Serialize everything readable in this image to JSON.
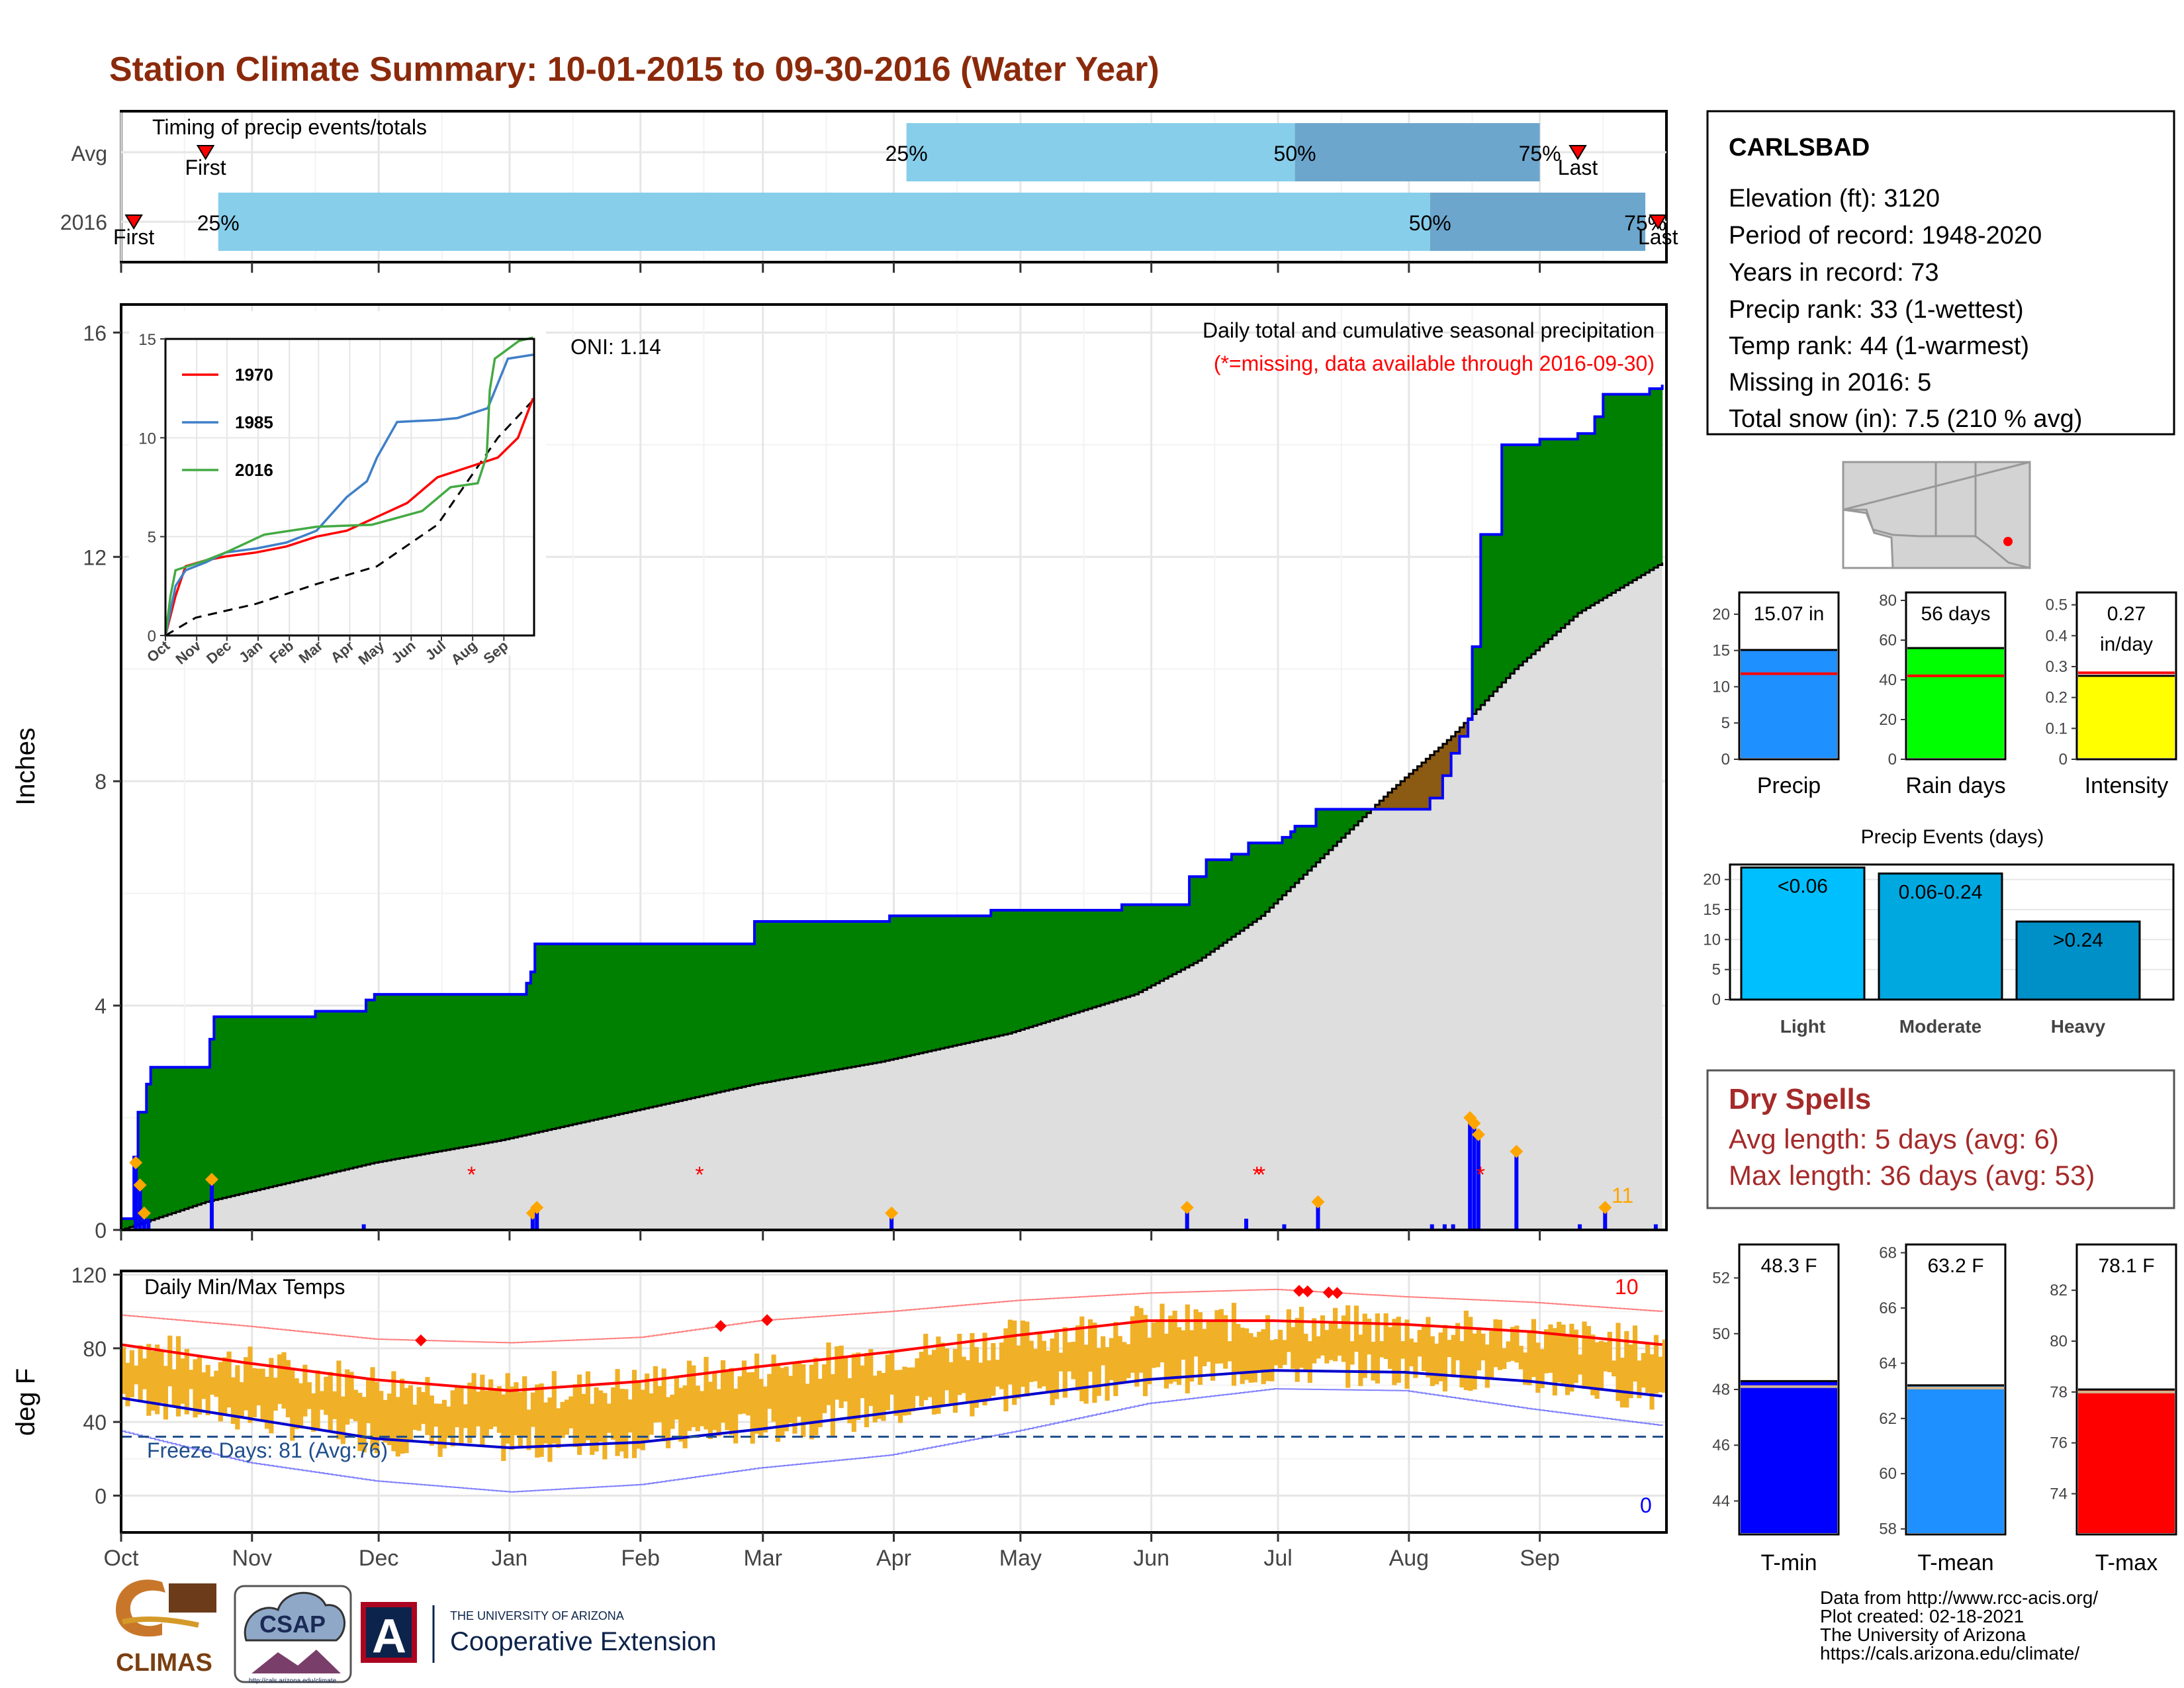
{
  "title": "Station Climate Summary: 10-01-2015 to 09-30-2016 (Water Year)",
  "colors": {
    "title": "#8b2a0b",
    "green": "#008000",
    "brown": "#8b5a13",
    "avg_fill": "#dedede",
    "blue": "#0000ff",
    "orange": "#f0b027",
    "red": "#ff0000",
    "light_blue_bar": "#87ceeb",
    "dark_blue_bar": "#6ca6cd",
    "dry_red": "#a52a2a"
  },
  "timing": {
    "title": "Timing of precip events/totals",
    "rows": [
      {
        "label": "Avg",
        "first_label": "First",
        "last_label": "Last",
        "q25": "25%",
        "q50": "50%",
        "q75": "75%",
        "first_day": 20,
        "last_day": 345,
        "p25_day": 186,
        "p50_day": 278,
        "p75_day": 336
      },
      {
        "label": "2016",
        "first_label": "First",
        "last_label": "Last",
        "q25": "25%",
        "q50": "50%",
        "q75": "75%",
        "first_day": 3,
        "last_day": 364,
        "p25_day": 23,
        "p50_day": 310,
        "p75_day": 361
      }
    ]
  },
  "chart_data": [
    {
      "type": "area",
      "name": "precip",
      "title": "Daily total and cumulative seasonal precipitation",
      "subtitle": "(*=missing, data available through 2016-09-30)",
      "ylabel": "Inches",
      "ylim": [
        0,
        16.5
      ],
      "yticks": [
        0,
        4,
        8,
        12,
        16
      ],
      "oni_label": "ONI: 1.14",
      "count_label": "11",
      "x_ticks": [
        "Oct",
        "Nov",
        "Dec",
        "Jan",
        "Feb",
        "Mar",
        "Apr",
        "May",
        "Jun",
        "Jul",
        "Aug",
        "Sep"
      ],
      "cumulative_2016_steps": [
        [
          0,
          0.2
        ],
        [
          3,
          1.3
        ],
        [
          4,
          2.1
        ],
        [
          6,
          2.6
        ],
        [
          7,
          2.9
        ],
        [
          21,
          3.4
        ],
        [
          22,
          3.8
        ],
        [
          45,
          3.8
        ],
        [
          46,
          3.9
        ],
        [
          57,
          3.9
        ],
        [
          58,
          4.1
        ],
        [
          60,
          4.2
        ],
        [
          95,
          4.2
        ],
        [
          96,
          4.4
        ],
        [
          97,
          4.6
        ],
        [
          98,
          5.1
        ],
        [
          149,
          5.1
        ],
        [
          150,
          5.5
        ],
        [
          172,
          5.5
        ],
        [
          182,
          5.6
        ],
        [
          205,
          5.6
        ],
        [
          206,
          5.7
        ],
        [
          236,
          5.7
        ],
        [
          237,
          5.8
        ],
        [
          252,
          5.8
        ],
        [
          253,
          6.3
        ],
        [
          256,
          6.3
        ],
        [
          257,
          6.6
        ],
        [
          262,
          6.6
        ],
        [
          263,
          6.7
        ],
        [
          266,
          6.7
        ],
        [
          267,
          6.9
        ],
        [
          275,
          7.0
        ],
        [
          277,
          7.1
        ],
        [
          278,
          7.2
        ],
        [
          283,
          7.5
        ],
        [
          306,
          7.5
        ],
        [
          310,
          7.7
        ],
        [
          313,
          8.1
        ],
        [
          315,
          8.5
        ],
        [
          317,
          8.8
        ],
        [
          319,
          9.1
        ],
        [
          320,
          10.4
        ],
        [
          322,
          12.4
        ],
        [
          327,
          14.0
        ],
        [
          336,
          14.1
        ],
        [
          345,
          14.2
        ],
        [
          349,
          14.5
        ],
        [
          351,
          14.9
        ],
        [
          362,
          15.0
        ],
        [
          365,
          15.07
        ]
      ],
      "cumulative_avg": [
        [
          0,
          0
        ],
        [
          20,
          0.5
        ],
        [
          60,
          1.2
        ],
        [
          90,
          1.6
        ],
        [
          120,
          2.1
        ],
        [
          150,
          2.6
        ],
        [
          180,
          3.0
        ],
        [
          210,
          3.5
        ],
        [
          240,
          4.2
        ],
        [
          255,
          4.8
        ],
        [
          270,
          5.6
        ],
        [
          285,
          6.7
        ],
        [
          300,
          7.8
        ],
        [
          315,
          8.8
        ],
        [
          330,
          10.0
        ],
        [
          345,
          11.0
        ],
        [
          365,
          11.9
        ]
      ],
      "daily_precip": [
        [
          3,
          1.2
        ],
        [
          4,
          0.8
        ],
        [
          5,
          0.3
        ],
        [
          6,
          0.2
        ],
        [
          21,
          0.9
        ],
        [
          57,
          0.1
        ],
        [
          97,
          0.3
        ],
        [
          98,
          0.4
        ],
        [
          182,
          0.3
        ],
        [
          252,
          0.4
        ],
        [
          266,
          0.2
        ],
        [
          275,
          0.1
        ],
        [
          283,
          0.5
        ],
        [
          310,
          0.1
        ],
        [
          313,
          0.1
        ],
        [
          315,
          0.1
        ],
        [
          319,
          2.0
        ],
        [
          320,
          1.9
        ],
        [
          321,
          1.7
        ],
        [
          330,
          1.4
        ],
        [
          345,
          0.1
        ],
        [
          351,
          0.4
        ],
        [
          363,
          0.1
        ]
      ],
      "missing_days": [
        83,
        137,
        269,
        270,
        322
      ],
      "inset": {
        "type": "line",
        "yticks": [
          0,
          5,
          10,
          15
        ],
        "ylim": [
          0,
          15
        ],
        "x_ticks": [
          "Oct",
          "Nov",
          "Dec",
          "Jan",
          "Feb",
          "Mar",
          "Apr",
          "May",
          "Jun",
          "Jul",
          "Aug",
          "Sep"
        ],
        "series": [
          {
            "name": "1970",
            "color": "#ff0000",
            "values": [
              [
                0,
                0
              ],
              [
                10,
                2
              ],
              [
                20,
                3.5
              ],
              [
                40,
                3.8
              ],
              [
                60,
                4.0
              ],
              [
                90,
                4.2
              ],
              [
                120,
                4.5
              ],
              [
                150,
                5.0
              ],
              [
                180,
                5.3
              ],
              [
                210,
                6.0
              ],
              [
                240,
                6.7
              ],
              [
                270,
                8.0
              ],
              [
                300,
                8.5
              ],
              [
                330,
                9.0
              ],
              [
                350,
                10.0
              ],
              [
                365,
                12.0
              ]
            ]
          },
          {
            "name": "1985",
            "color": "#3f7fc8",
            "values": [
              [
                0,
                0
              ],
              [
                10,
                2.5
              ],
              [
                20,
                3.3
              ],
              [
                40,
                3.7
              ],
              [
                60,
                4.2
              ],
              [
                90,
                4.4
              ],
              [
                120,
                4.7
              ],
              [
                150,
                5.3
              ],
              [
                180,
                7.0
              ],
              [
                200,
                7.8
              ],
              [
                210,
                9.0
              ],
              [
                230,
                10.8
              ],
              [
                270,
                10.9
              ],
              [
                290,
                11.0
              ],
              [
                320,
                11.5
              ],
              [
                340,
                14.0
              ],
              [
                365,
                14.2
              ]
            ]
          },
          {
            "name": "2016",
            "color": "#44aa44",
            "values": [
              [
                0,
                0
              ],
              [
                5,
                2.0
              ],
              [
                10,
                3.3
              ],
              [
                40,
                3.8
              ],
              [
                60,
                4.2
              ],
              [
                98,
                5.1
              ],
              [
                150,
                5.5
              ],
              [
                205,
                5.6
              ],
              [
                255,
                6.3
              ],
              [
                283,
                7.5
              ],
              [
                310,
                7.7
              ],
              [
                319,
                9.1
              ],
              [
                322,
                12.4
              ],
              [
                327,
                14.0
              ],
              [
                351,
                14.9
              ],
              [
                365,
                15.07
              ]
            ]
          }
        ],
        "avg_values": [
          [
            0,
            0
          ],
          [
            30,
            0.9
          ],
          [
            90,
            1.6
          ],
          [
            150,
            2.6
          ],
          [
            210,
            3.5
          ],
          [
            270,
            5.6
          ],
          [
            300,
            7.8
          ],
          [
            330,
            10.0
          ],
          [
            365,
            11.9
          ]
        ]
      }
    },
    {
      "type": "line",
      "name": "temps",
      "title": "Daily Min/Max Temps",
      "ylabel": "deg F",
      "ylim": [
        -20,
        122
      ],
      "yticks": [
        0,
        40,
        80,
        120
      ],
      "x_ticks": [
        "Oct",
        "Nov",
        "Dec",
        "Jan",
        "Feb",
        "Mar",
        "Apr",
        "May",
        "Jun",
        "Jul",
        "Aug",
        "Sep"
      ],
      "freeze_label": "Freeze Days: 81 (Avg:76)",
      "freeze_line": 32,
      "max_count_label": "10",
      "min_count_label": "0",
      "avg_max": [
        [
          0,
          82
        ],
        [
          30,
          72
        ],
        [
          60,
          63
        ],
        [
          92,
          57
        ],
        [
          123,
          62
        ],
        [
          151,
          70
        ],
        [
          182,
          78
        ],
        [
          212,
          87
        ],
        [
          243,
          95
        ],
        [
          273,
          95
        ],
        [
          304,
          93
        ],
        [
          334,
          89
        ],
        [
          365,
          82
        ]
      ],
      "avg_min": [
        [
          0,
          53
        ],
        [
          30,
          42
        ],
        [
          60,
          31
        ],
        [
          92,
          26
        ],
        [
          123,
          29
        ],
        [
          151,
          36
        ],
        [
          182,
          45
        ],
        [
          212,
          54
        ],
        [
          243,
          63
        ],
        [
          273,
          68
        ],
        [
          304,
          67
        ],
        [
          334,
          62
        ],
        [
          365,
          54
        ]
      ],
      "record_max": [
        [
          0,
          98
        ],
        [
          30,
          92
        ],
        [
          60,
          85
        ],
        [
          92,
          83
        ],
        [
          123,
          86
        ],
        [
          151,
          95
        ],
        [
          182,
          100
        ],
        [
          212,
          106
        ],
        [
          243,
          110
        ],
        [
          273,
          112
        ],
        [
          304,
          108
        ],
        [
          334,
          105
        ],
        [
          365,
          100
        ]
      ],
      "record_min": [
        [
          0,
          35
        ],
        [
          30,
          18
        ],
        [
          60,
          8
        ],
        [
          92,
          2
        ],
        [
          123,
          6
        ],
        [
          151,
          15
        ],
        [
          182,
          22
        ],
        [
          212,
          35
        ],
        [
          243,
          50
        ],
        [
          273,
          58
        ],
        [
          304,
          57
        ],
        [
          334,
          47
        ],
        [
          365,
          38
        ]
      ],
      "record_max_days": [
        71,
        142,
        153,
        279,
        281,
        286,
        288
      ]
    },
    {
      "type": "bar",
      "name": "precip-total",
      "value_label": "15.07 in",
      "xlabel": "Precip",
      "yticks": [
        0,
        5,
        10,
        15,
        20
      ],
      "ylim": [
        0,
        23
      ],
      "value": 15.07,
      "average": 11.8,
      "color": "#1e90ff"
    },
    {
      "type": "bar",
      "name": "rain-days",
      "value_label": "56 days",
      "xlabel": "Rain days",
      "yticks": [
        0,
        20,
        40,
        60,
        80
      ],
      "ylim": [
        0,
        84
      ],
      "value": 56,
      "average": 42,
      "color": "#00ff00"
    },
    {
      "type": "bar",
      "name": "intensity",
      "value_label": "0.27 in/day",
      "xlabel": "Intensity",
      "yticks": [
        0.0,
        0.1,
        0.2,
        0.3,
        0.4,
        0.5
      ],
      "ylim": [
        0,
        0.54
      ],
      "value": 0.27,
      "average": 0.28,
      "color": "#ffff00"
    },
    {
      "type": "bar",
      "name": "precip-events",
      "title": "Precip Events (days)",
      "yticks": [
        0,
        5,
        10,
        15,
        20
      ],
      "ylim": [
        0,
        22.5
      ],
      "categories": [
        "Light",
        "Moderate",
        "Heavy"
      ],
      "labels": [
        "<0.06",
        "0.06-0.24",
        ">0.24"
      ],
      "values": [
        22,
        21,
        13
      ],
      "colors": [
        "#00bfff",
        "#00a8e0",
        "#0090c8"
      ]
    },
    {
      "type": "bar",
      "name": "t-min",
      "value_label": "48.3 F",
      "xlabel": "T-min",
      "yticks": [
        44,
        46,
        48,
        50,
        52
      ],
      "ylim": [
        42.8,
        53.2
      ],
      "value": 48.3,
      "average": 48.1,
      "color": "#0000ff"
    },
    {
      "type": "bar",
      "name": "t-mean",
      "value_label": "63.2 F",
      "xlabel": "T-mean",
      "yticks": [
        58,
        60,
        62,
        64,
        66,
        68
      ],
      "ylim": [
        57.8,
        68.3
      ],
      "value": 63.2,
      "average": 63.1,
      "color": "#1e90ff"
    },
    {
      "type": "bar",
      "name": "t-max",
      "value_label": "78.1 F",
      "xlabel": "T-max",
      "yticks": [
        74,
        76,
        78,
        80,
        82
      ],
      "ylim": [
        72.4,
        83.8
      ],
      "value": 78.1,
      "average": 78.0,
      "color": "#ff0000"
    }
  ],
  "station": {
    "name": "CARLSBAD",
    "lines": [
      "Elevation (ft): 3120",
      "Period of record: 1948-2020",
      "Years in record: 73",
      "Precip rank: 33 (1-wettest)",
      "Temp rank: 44 (1-warmest)",
      "Missing in 2016: 5",
      "Total snow (in): 7.5 (210 % avg)"
    ]
  },
  "dry_spells": {
    "title": "Dry Spells",
    "avg": "Avg length: 5 days (avg: 6)",
    "max": "Max length: 36 days (avg: 53)"
  },
  "footer": {
    "lines": [
      "Data from http://www.rcc-acis.org/",
      "Plot created: 02-18-2021",
      "The University of Arizona",
      "https://cals.arizona.edu/climate/"
    ],
    "logo_climas": "CLIMAS",
    "logo_csap": "CSAP",
    "logo_csap_url": "http://cals.arizona.edu/climate",
    "logo_ua_small": "THE UNIVERSITY OF ARIZONA",
    "logo_ua_big": "Cooperative Extension",
    "logo_ua_letter": "A"
  }
}
